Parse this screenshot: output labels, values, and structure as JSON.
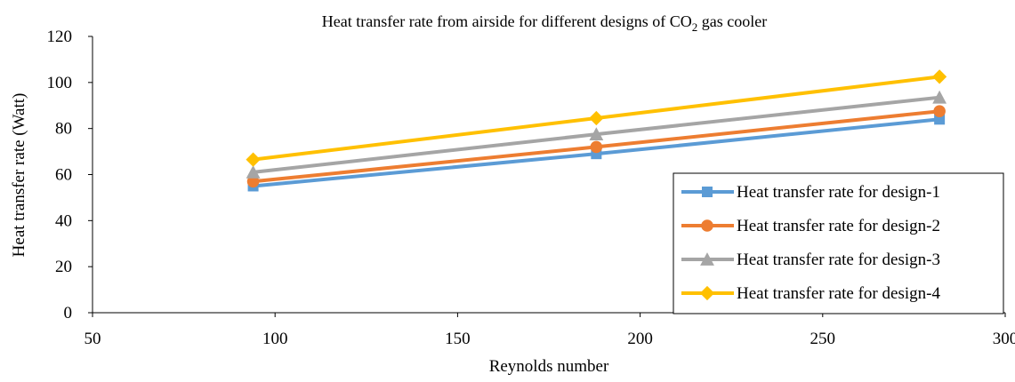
{
  "chart_data": {
    "type": "line",
    "title": "Heat transfer rate from airside for different designs of CO",
    "title_subscript": "2",
    "title_suffix": " gas cooler",
    "xlabel": "Reynolds number",
    "ylabel": "Heat transfer rate (Watt)",
    "xlim": [
      50,
      300
    ],
    "ylim": [
      0,
      120
    ],
    "xticks": [
      50,
      100,
      150,
      200,
      250,
      300
    ],
    "yticks": [
      0,
      20,
      40,
      60,
      80,
      100,
      120
    ],
    "grid": false,
    "legend_position": "right",
    "x": [
      94,
      188,
      282
    ],
    "series": [
      {
        "name": "Heat transfer rate for design-1",
        "values": [
          55,
          69,
          84
        ],
        "color": "#5B9BD5",
        "marker": "square"
      },
      {
        "name": "Heat transfer rate for design-2",
        "values": [
          57,
          72,
          87.5
        ],
        "color": "#ED7D31",
        "marker": "circle"
      },
      {
        "name": "Heat transfer rate for design-3",
        "values": [
          61,
          77.5,
          93.5
        ],
        "color": "#A5A5A5",
        "marker": "triangle"
      },
      {
        "name": "Heat transfer rate for design-4",
        "values": [
          66.5,
          84.5,
          102.5
        ],
        "color": "#FFC000",
        "marker": "diamond"
      }
    ]
  }
}
